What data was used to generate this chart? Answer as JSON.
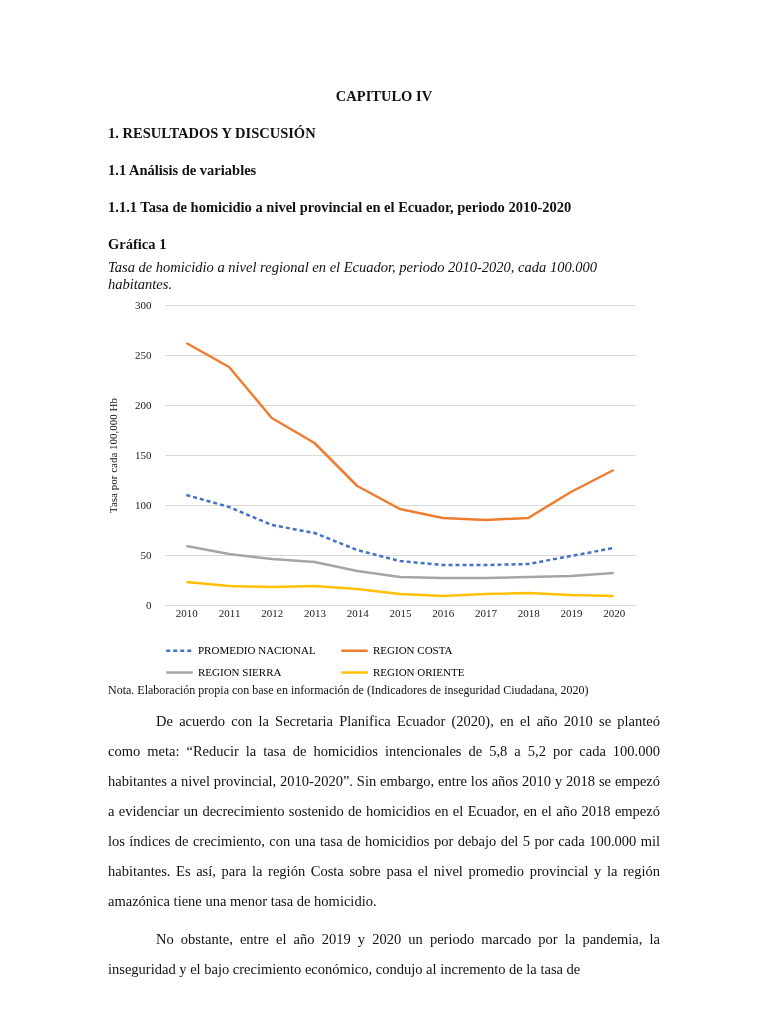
{
  "chart_data": {
    "type": "line",
    "title": "Gráfica 1",
    "subtitle": "Tasa de homicidio a nivel regional en el Ecuador, periodo 2010-2020, cada 100.000 habitantes.",
    "ylabel": "Tasa por cada 100,000 Hb",
    "categories": [
      "2010",
      "2011",
      "2012",
      "2013",
      "2014",
      "2015",
      "2016",
      "2017",
      "2018",
      "2019",
      "2020"
    ],
    "series": [
      {
        "name": "PROMEDIO NACIONAL",
        "color": "#4472c4",
        "line_style": "dashed",
        "values": [
          110,
          98,
          80,
          72,
          55,
          44,
          40,
          40,
          41,
          49,
          57
        ]
      },
      {
        "name": "REGION COSTA",
        "color": "#ed7d31",
        "line_style": "solid",
        "values": [
          262,
          238,
          187,
          162,
          119,
          96,
          87,
          85,
          87,
          113,
          135
        ]
      },
      {
        "name": "REGION SIERRA",
        "color": "#a5a5a5",
        "line_style": "solid",
        "values": [
          59,
          51,
          46,
          43,
          34,
          28,
          27,
          27,
          28,
          29,
          32
        ]
      },
      {
        "name": "REGION ORIENTE",
        "color": "#ffc000",
        "line_style": "solid",
        "values": [
          23,
          19,
          18,
          19,
          16,
          11,
          9,
          11,
          12,
          10,
          9
        ]
      }
    ],
    "ylim": [
      0,
      300
    ],
    "yticks": [
      0,
      50,
      100,
      150,
      200,
      250,
      300
    ],
    "grid": "y",
    "legend": "bottom",
    "annotations": [
      "CAPITULO IV",
      "1.   RESULTADOS Y DISCUSIÓN",
      "1.1      Análisis de variables",
      "1.1.1    Tasa de homicidio a nivel provincial en el Ecuador, periodo 2010-2020",
      "Nota. Elaboración propia con base en información de (Indicadores de inseguridad Ciudadana, 2020)",
      "De acuerdo con la Secretaria Planifica Ecuador (2020), en el año 2010 se planteó como meta: “Reducir la tasa de homicidios intencionales de 5,8 a 5,2 por cada 100.000 habitantes a nivel provincial, 2010-2020”. Sin embargo, entre los años 2010 y 2018 se empezó a evidenciar un decrecimiento sostenido de homicidios en el Ecuador, en el año 2018 empezó los índices de crecimiento, con una tasa de homicidios por debajo del 5 por cada 100.000 mil habitantes. Es así, para la región Costa sobre pasa el nivel promedio provincial y la región amazónica tiene una menor tasa de homicidio.",
      "No obstante, entre el año 2019 y 2020 un periodo marcado por la pandemia, la inseguridad y el bajo crecimiento económico, condujo al incremento de la tasa de"
    ]
  }
}
